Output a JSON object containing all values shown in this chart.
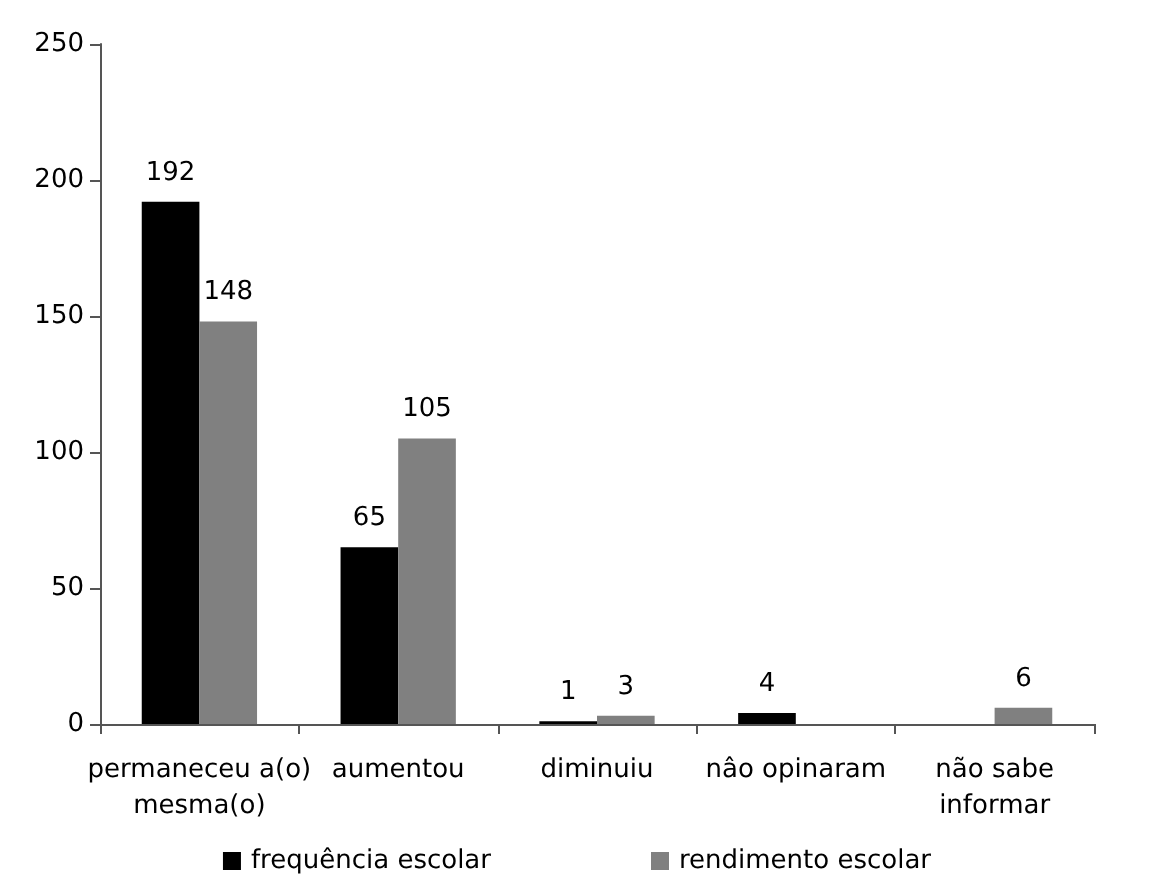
{
  "chart_data": {
    "type": "bar",
    "categories": [
      "permaneceu a(o)\nmesma(o)",
      "aumentou",
      "diminuiu",
      "nâo opinaram",
      "não sabe\ninformar"
    ],
    "series": [
      {
        "name": "frequência escolar",
        "color": "#000000",
        "values": [
          192,
          65,
          1,
          4,
          0
        ],
        "value_labels": [
          "192",
          "65",
          "1",
          "4",
          null
        ]
      },
      {
        "name": "rendimento escolar",
        "color": "#808080",
        "values": [
          148,
          105,
          3,
          0,
          6
        ],
        "value_labels": [
          "148",
          "105",
          "3",
          null,
          "6"
        ]
      }
    ],
    "ylim": [
      0,
      250
    ],
    "yticks": [
      0,
      50,
      100,
      150,
      200,
      250
    ],
    "grid": false,
    "legend": "bottom"
  }
}
